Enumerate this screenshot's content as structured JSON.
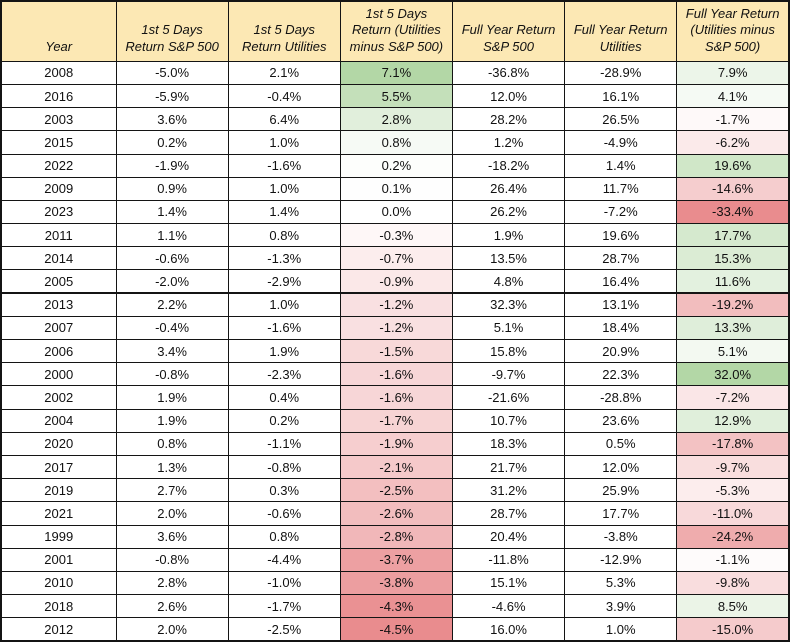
{
  "chart_data": {
    "type": "table",
    "columns": [
      "Year",
      "1st 5 Days Return S&P 500",
      "1st 5 Days Return Utilities",
      "1st 5 Days Return (Utilities minus S&P 500)",
      "Full Year Return S&P 500",
      "Full Year Return Utilities",
      "Full Year Return (Utilities minus S&P 500)"
    ],
    "value_format": "percent_one_decimal",
    "rows": [
      {
        "year": "2008",
        "values": [
          -5.0,
          2.1,
          7.1,
          -36.8,
          -28.9,
          7.9
        ]
      },
      {
        "year": "2016",
        "values": [
          -5.9,
          -0.4,
          5.5,
          12.0,
          16.1,
          4.1
        ]
      },
      {
        "year": "2003",
        "values": [
          3.6,
          6.4,
          2.8,
          28.2,
          26.5,
          -1.7
        ]
      },
      {
        "year": "2015",
        "values": [
          0.2,
          1.0,
          0.8,
          1.2,
          -4.9,
          -6.2
        ]
      },
      {
        "year": "2022",
        "values": [
          -1.9,
          -1.6,
          0.2,
          -18.2,
          1.4,
          19.6
        ]
      },
      {
        "year": "2009",
        "values": [
          0.9,
          1.0,
          0.1,
          26.4,
          11.7,
          -14.6
        ]
      },
      {
        "year": "2023",
        "values": [
          1.4,
          1.4,
          0.0,
          26.2,
          -7.2,
          -33.4
        ]
      },
      {
        "year": "2011",
        "values": [
          1.1,
          0.8,
          -0.3,
          1.9,
          19.6,
          17.7
        ]
      },
      {
        "year": "2014",
        "values": [
          -0.6,
          -1.3,
          -0.7,
          13.5,
          28.7,
          15.3
        ]
      },
      {
        "year": "2005",
        "values": [
          -2.0,
          -2.9,
          -0.9,
          4.8,
          16.4,
          11.6
        ]
      },
      {
        "year": "2013",
        "values": [
          2.2,
          1.0,
          -1.2,
          32.3,
          13.1,
          -19.2
        ],
        "thick_top_border": true
      },
      {
        "year": "2007",
        "values": [
          -0.4,
          -1.6,
          -1.2,
          5.1,
          18.4,
          13.3
        ]
      },
      {
        "year": "2006",
        "values": [
          3.4,
          1.9,
          -1.5,
          15.8,
          20.9,
          5.1
        ]
      },
      {
        "year": "2000",
        "values": [
          -0.8,
          -2.3,
          -1.6,
          -9.7,
          22.3,
          32.0
        ]
      },
      {
        "year": "2002",
        "values": [
          1.9,
          0.4,
          -1.6,
          -21.6,
          -28.8,
          -7.2
        ]
      },
      {
        "year": "2004",
        "values": [
          1.9,
          0.2,
          -1.7,
          10.7,
          23.6,
          12.9
        ]
      },
      {
        "year": "2020",
        "values": [
          0.8,
          -1.1,
          -1.9,
          18.3,
          0.5,
          -17.8
        ]
      },
      {
        "year": "2017",
        "values": [
          1.3,
          -0.8,
          -2.1,
          21.7,
          12.0,
          -9.7
        ]
      },
      {
        "year": "2019",
        "values": [
          2.7,
          0.3,
          -2.5,
          31.2,
          25.9,
          -5.3
        ]
      },
      {
        "year": "2021",
        "values": [
          2.0,
          -0.6,
          -2.6,
          28.7,
          17.7,
          -11.0
        ]
      },
      {
        "year": "1999",
        "values": [
          3.6,
          0.8,
          -2.8,
          20.4,
          -3.8,
          -24.2
        ]
      },
      {
        "year": "2001",
        "values": [
          -0.8,
          -4.4,
          -3.7,
          -11.8,
          -12.9,
          -1.1
        ]
      },
      {
        "year": "2010",
        "values": [
          2.8,
          -1.0,
          -3.8,
          15.1,
          5.3,
          -9.8
        ]
      },
      {
        "year": "2018",
        "values": [
          2.6,
          -1.7,
          -4.3,
          -4.6,
          3.9,
          8.5
        ]
      },
      {
        "year": "2012",
        "values": [
          2.0,
          -2.5,
          -4.5,
          16.0,
          1.0,
          -15.0
        ]
      }
    ],
    "gradient_value_columns": [
      2,
      5
    ],
    "layout": {
      "legend_position": "none",
      "grid": "all-borders"
    }
  },
  "colors": {
    "header_bg": "#FCE8B4",
    "gradient_green_max": "#B3D7A6",
    "gradient_red_min": "#E98C8E",
    "gradient_neutral": "#FFFFFF",
    "border": "#141414",
    "text": "#111111"
  }
}
